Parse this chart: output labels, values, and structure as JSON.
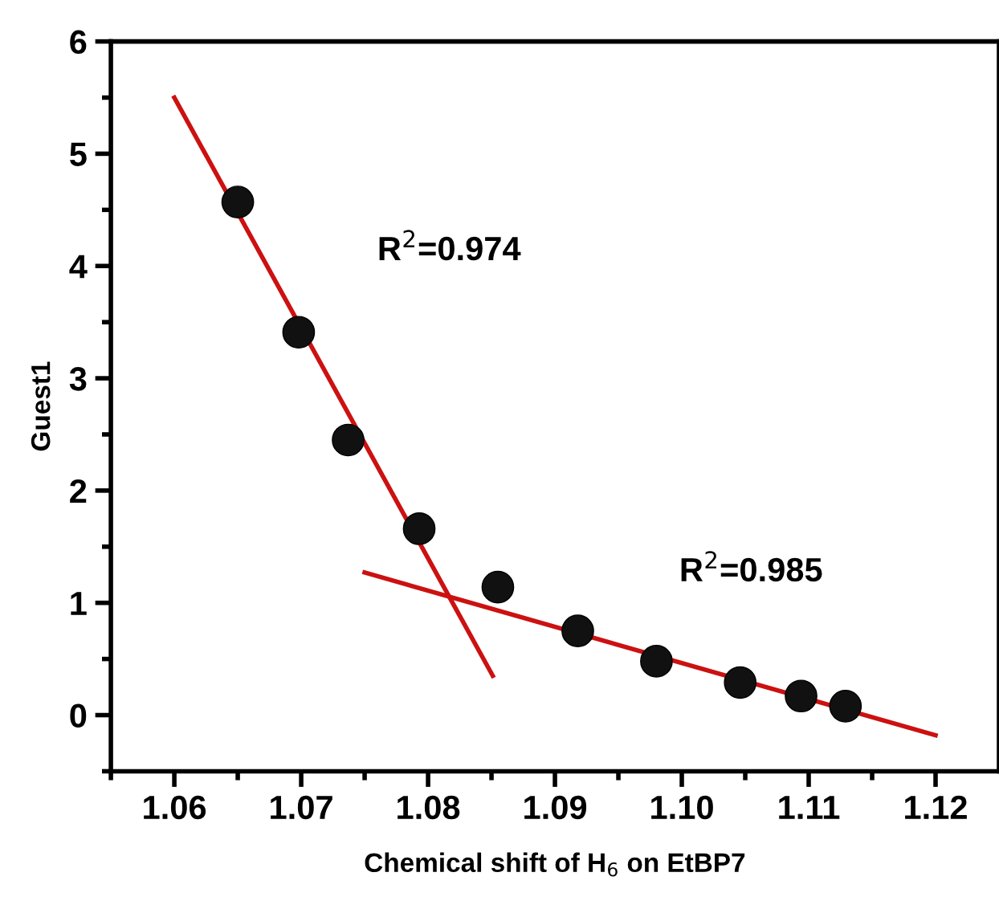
{
  "chart_data": {
    "type": "scatter",
    "xlabel": "Chemical shift of H$_{6}$ on EtBP7",
    "ylabel": "Guest1",
    "series": [
      {
        "color": "#111111",
        "marker": "circle",
        "x": [
          1.065,
          1.0698,
          1.0737,
          1.0793,
          1.0855,
          1.0918,
          1.098,
          1.1046,
          1.1094,
          1.1129
        ],
        "values": [
          4.57,
          3.41,
          2.45,
          1.66,
          1.14,
          0.75,
          0.48,
          0.29,
          0.17,
          0.08
        ]
      },
      {
        "type": "line",
        "color": "#cc1111",
        "line_style": "solid",
        "x": [
          1.06,
          1.0851
        ],
        "values": [
          5.5,
          0.35
        ]
      },
      {
        "type": "line",
        "color": "#cc1111",
        "line_style": "solid",
        "x": [
          1.075,
          1.12
        ],
        "values": [
          1.27,
          -0.18
        ]
      }
    ],
    "annotations": [
      "R$^{2}$=0.974",
      "R$^{2}$=0.985"
    ],
    "xlim": [
      1.055,
      1.125
    ],
    "ylim": [
      -0.5,
      6
    ],
    "xticks": [
      1.06,
      1.07,
      1.08,
      1.09,
      {
        "value": 1.1,
        "label": "1.10"
      },
      1.11,
      1.12
    ],
    "yticks": [
      0,
      1,
      2,
      3,
      4,
      5,
      6
    ],
    "grid": false,
    "legend": false
  }
}
